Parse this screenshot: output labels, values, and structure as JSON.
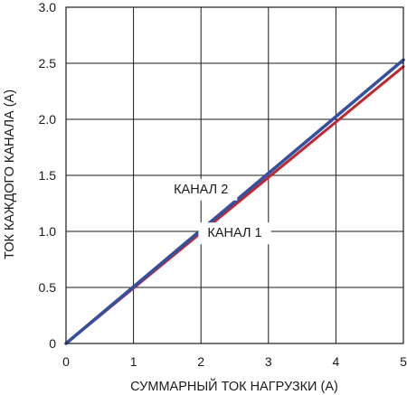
{
  "chart_data": {
    "type": "line",
    "xlabel": "СУММАРНЫЙ ТОК НАГРУЗКИ (А)",
    "ylabel": "ТОК КАЖДОГО КАНАЛА (А)",
    "xlim": [
      0,
      5
    ],
    "ylim": [
      0,
      3.0
    ],
    "x_ticks": [
      "0",
      "1",
      "2",
      "3",
      "4",
      "5"
    ],
    "y_ticks": [
      "0",
      "0.5",
      "1.0",
      "1.5",
      "2.0",
      "2.5",
      "3.0"
    ],
    "grid": true,
    "series": [
      {
        "name": "КАНАЛ 1",
        "color": "#c0282e",
        "x": [
          0,
          5
        ],
        "y": [
          0,
          2.47
        ]
      },
      {
        "name": "КАНАЛ 2",
        "color": "#3550a0",
        "x": [
          0,
          5
        ],
        "y": [
          0,
          2.53
        ]
      }
    ],
    "annotations": [
      {
        "text": "КАНАЛ 2",
        "x": 2.0,
        "y": 1.34
      },
      {
        "text": "КАНАЛ 1",
        "x": 2.5,
        "y": 0.95
      }
    ]
  }
}
